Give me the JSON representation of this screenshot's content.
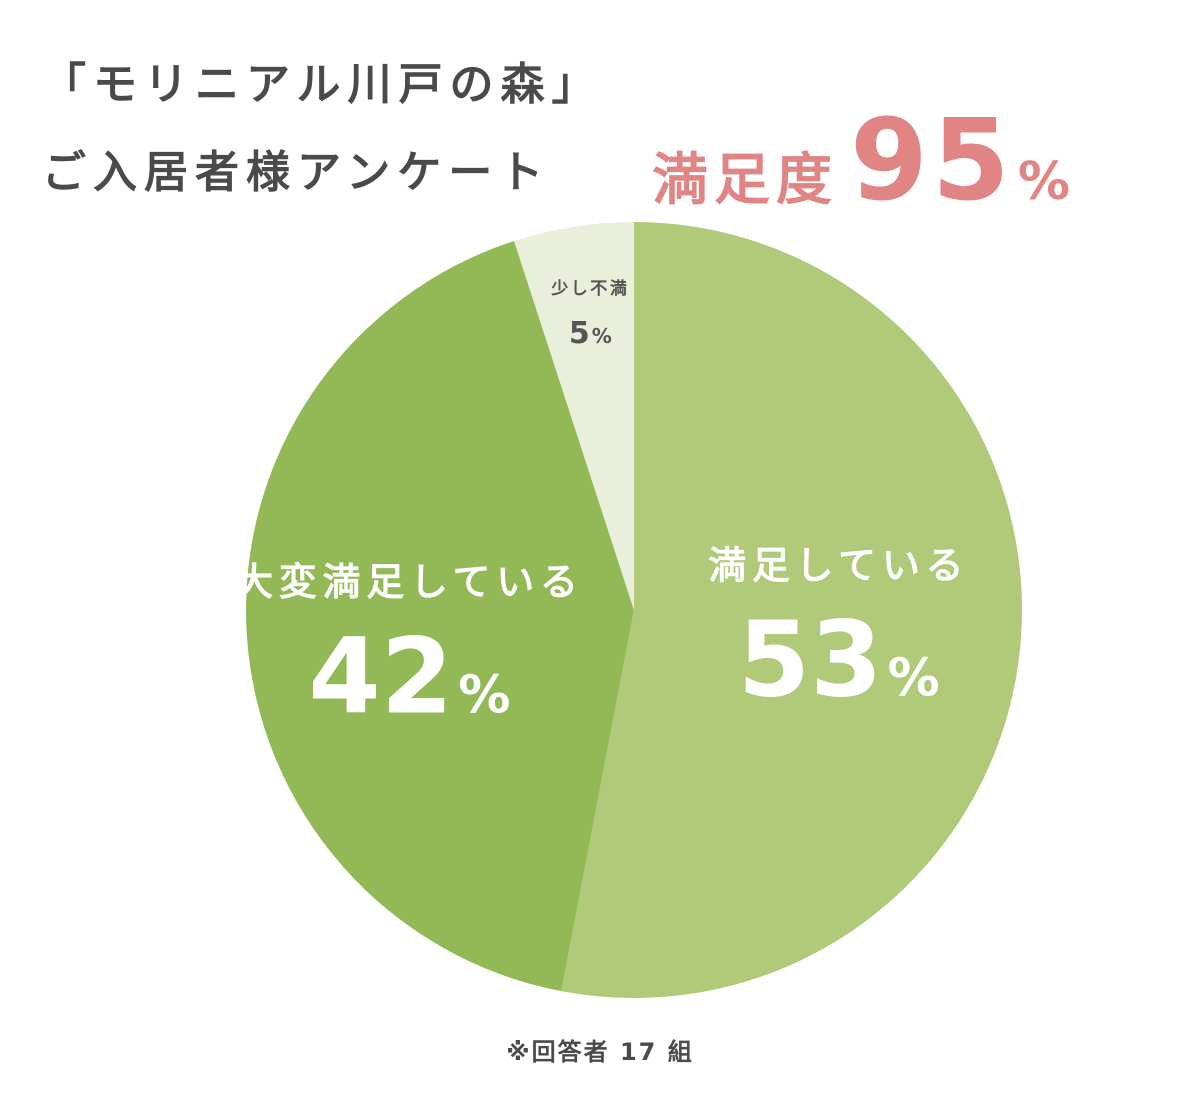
{
  "header": {
    "title_line1": "「モリニアル川戸の森」",
    "title_line2": "ご入居者様アンケート",
    "headline_label": "満足度",
    "headline_value": "95",
    "headline_unit": "%"
  },
  "chart_data": {
    "type": "pie",
    "slices": [
      {
        "label": "満足している",
        "value": 53,
        "unit": "%",
        "color": "#b0ca79",
        "text_color": "#ffffff"
      },
      {
        "label": "大変満足している",
        "value": 42,
        "unit": "%",
        "color": "#93b856",
        "text_color": "#ffffff"
      },
      {
        "label": "少し不満",
        "value": 5,
        "unit": "%",
        "color": "#eaefdc",
        "text_color": "#555555"
      }
    ]
  },
  "footnote": "※回答者 17 組"
}
